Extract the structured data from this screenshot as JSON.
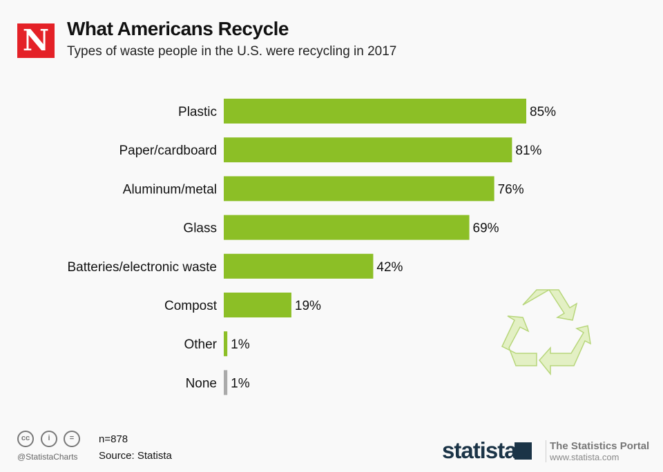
{
  "header": {
    "logo_letter": "N",
    "title": "What Americans Recycle",
    "subtitle": "Types of waste people in the U.S. were recycling in 2017"
  },
  "chart_data": {
    "type": "bar",
    "orientation": "horizontal",
    "title": "What Americans Recycle",
    "subtitle": "Types of waste people in the U.S. were recycling in 2017",
    "categories": [
      "Plastic",
      "Paper/cardboard",
      "Aluminum/metal",
      "Glass",
      "Batteries/electronic waste",
      "Compost",
      "Other",
      "None"
    ],
    "values": [
      85,
      81,
      76,
      69,
      42,
      19,
      1,
      1
    ],
    "value_labels": [
      "85%",
      "81%",
      "76%",
      "69%",
      "42%",
      "19%",
      "1%",
      "1%"
    ],
    "unit": "%",
    "xlim": [
      0,
      100
    ],
    "grid": false,
    "colors": [
      "#8cbf26",
      "#8cbf26",
      "#8cbf26",
      "#8cbf26",
      "#8cbf26",
      "#8cbf26",
      "#8cbf26",
      "#aaaaaa"
    ]
  },
  "footer": {
    "sample": "n=878",
    "source": "Source: Statista",
    "handle": "@StatistaCharts",
    "cc_icons": [
      "cc",
      "by",
      "nd"
    ],
    "brand": "statista",
    "portal": "The Statistics Portal",
    "url": "www.statista.com"
  }
}
